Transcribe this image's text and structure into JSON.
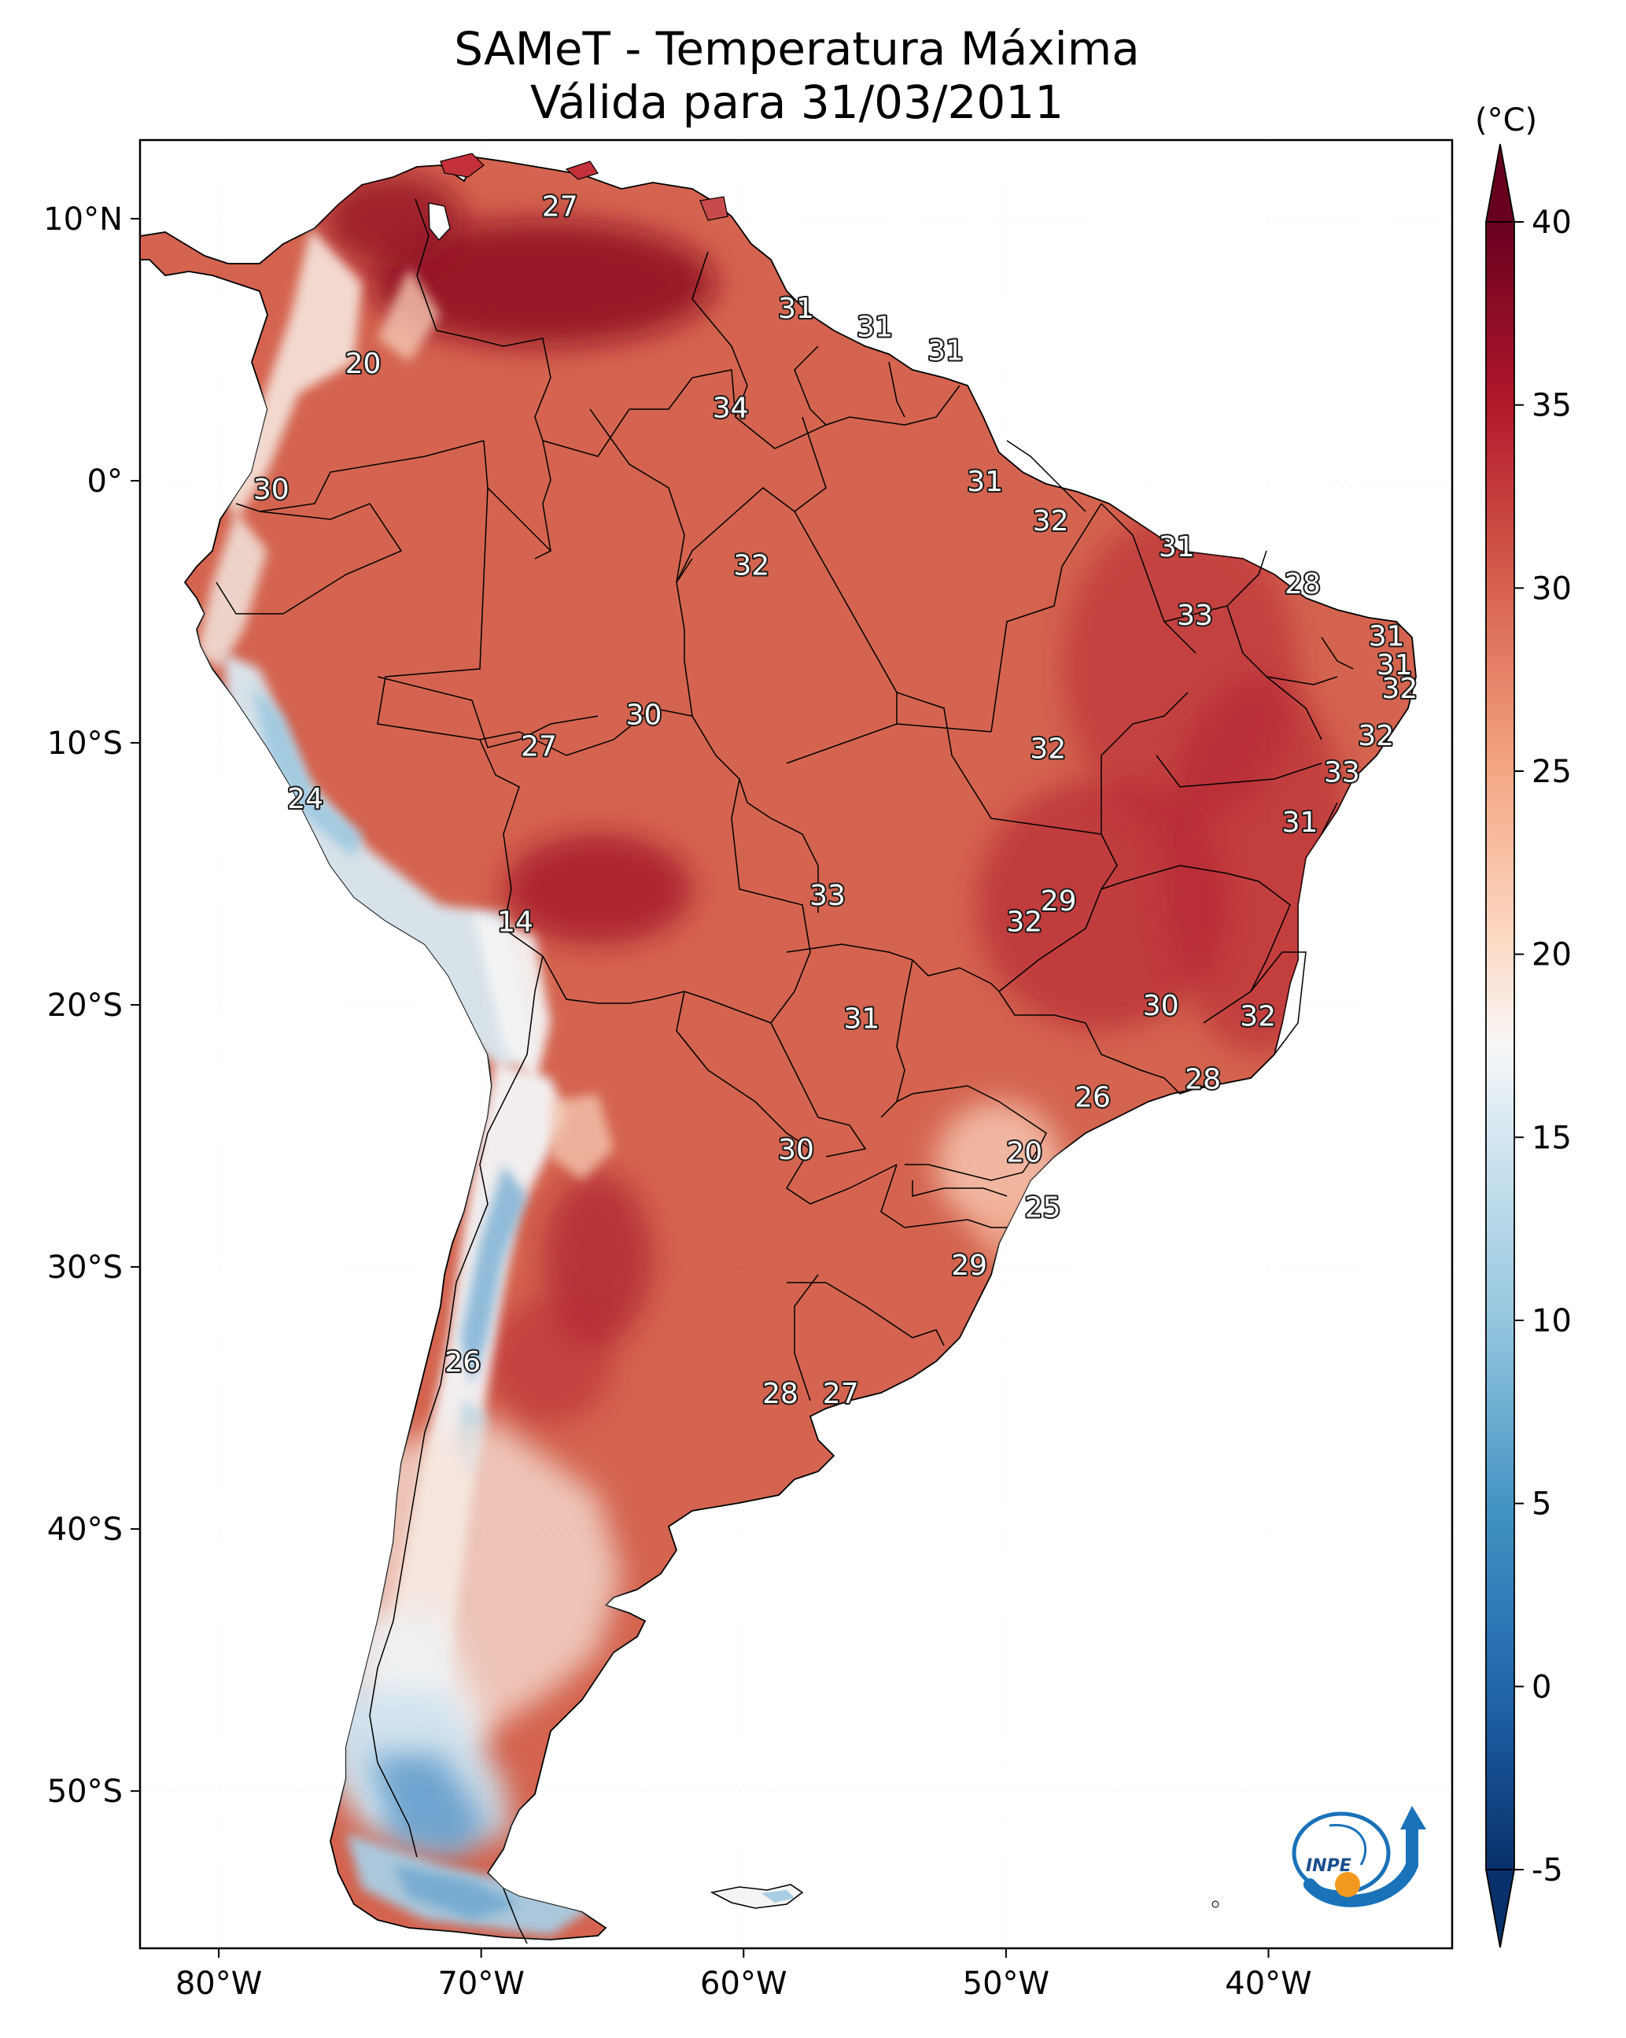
{
  "title": {
    "line1": "SAMeT - Temperatura Máxima",
    "line2": "Válida para 31/03/2011"
  },
  "map": {
    "lat_labels": [
      "10°N",
      "0°",
      "10°S",
      "20°S",
      "30°S",
      "40°S",
      "50°S"
    ],
    "lon_labels": [
      "80°W",
      "70°W",
      "60°W",
      "50°W",
      "40°W"
    ],
    "extent": {
      "lon": [
        -83,
        -33
      ],
      "lat": [
        -56,
        13
      ]
    },
    "point_labels": [
      {
        "text": "27",
        "lon": -67,
        "lat": 10.5
      },
      {
        "text": "31",
        "lon": -58,
        "lat": 6.6
      },
      {
        "text": "31",
        "lon": -55,
        "lat": 5.9
      },
      {
        "text": "31",
        "lon": -52.3,
        "lat": 5.0
      },
      {
        "text": "20",
        "lon": -74.5,
        "lat": 4.5
      },
      {
        "text": "34",
        "lon": -60.5,
        "lat": 2.8
      },
      {
        "text": "30",
        "lon": -78,
        "lat": -0.3
      },
      {
        "text": "31",
        "lon": -50.8,
        "lat": 0.0
      },
      {
        "text": "32",
        "lon": -48.3,
        "lat": -1.5
      },
      {
        "text": "31",
        "lon": -43.5,
        "lat": -2.5
      },
      {
        "text": "32",
        "lon": -59.7,
        "lat": -3.2
      },
      {
        "text": "28",
        "lon": -38.7,
        "lat": -3.9
      },
      {
        "text": "33",
        "lon": -42.8,
        "lat": -5.1
      },
      {
        "text": "31",
        "lon": -35.5,
        "lat": -5.9
      },
      {
        "text": "31",
        "lon": -35.2,
        "lat": -7.0
      },
      {
        "text": "32",
        "lon": -35.0,
        "lat": -7.9
      },
      {
        "text": "30",
        "lon": -63.8,
        "lat": -8.9
      },
      {
        "text": "27",
        "lon": -67.8,
        "lat": -10.1
      },
      {
        "text": "32",
        "lon": -48.4,
        "lat": -10.2
      },
      {
        "text": "32",
        "lon": -35.9,
        "lat": -9.7
      },
      {
        "text": "33",
        "lon": -37.2,
        "lat": -11.1
      },
      {
        "text": "24",
        "lon": -76.7,
        "lat": -12.1
      },
      {
        "text": "31",
        "lon": -38.8,
        "lat": -13.0
      },
      {
        "text": "33",
        "lon": -56.8,
        "lat": -15.8
      },
      {
        "text": "29",
        "lon": -48.0,
        "lat": -16.0
      },
      {
        "text": "14",
        "lon": -68.7,
        "lat": -16.8
      },
      {
        "text": "32",
        "lon": -49.3,
        "lat": -16.8
      },
      {
        "text": "30",
        "lon": -44.1,
        "lat": -20.0
      },
      {
        "text": "31",
        "lon": -55.5,
        "lat": -20.5
      },
      {
        "text": "32",
        "lon": -40.4,
        "lat": -20.4
      },
      {
        "text": "28",
        "lon": -42.5,
        "lat": -22.8
      },
      {
        "text": "26",
        "lon": -46.7,
        "lat": -23.5
      },
      {
        "text": "30",
        "lon": -58.0,
        "lat": -25.5
      },
      {
        "text": "20",
        "lon": -49.3,
        "lat": -25.6
      },
      {
        "text": "25",
        "lon": -48.6,
        "lat": -27.7
      },
      {
        "text": "29",
        "lon": -51.4,
        "lat": -29.9
      },
      {
        "text": "26",
        "lon": -70.7,
        "lat": -33.6
      },
      {
        "text": "28",
        "lon": -58.6,
        "lat": -34.8
      },
      {
        "text": "27",
        "lon": -56.3,
        "lat": -34.8
      }
    ]
  },
  "colorbar": {
    "unit": "(°C)",
    "ticks": [
      "40",
      "35",
      "30",
      "25",
      "20",
      "15",
      "10",
      "5",
      "0",
      "-5"
    ],
    "range": [
      -5,
      40
    ],
    "colormap": "RdBu_r",
    "colors": {
      "-5": "#08306b",
      "0": "#2166ac",
      "5": "#4393c3",
      "10": "#92c5de",
      "15": "#d1e5f0",
      "17.5": "#f7f7f7",
      "20": "#fddbc7",
      "25": "#f4a582",
      "30": "#d6604d",
      "35": "#b2182b",
      "40": "#67001f"
    }
  },
  "logo": {
    "text": "INPE"
  }
}
